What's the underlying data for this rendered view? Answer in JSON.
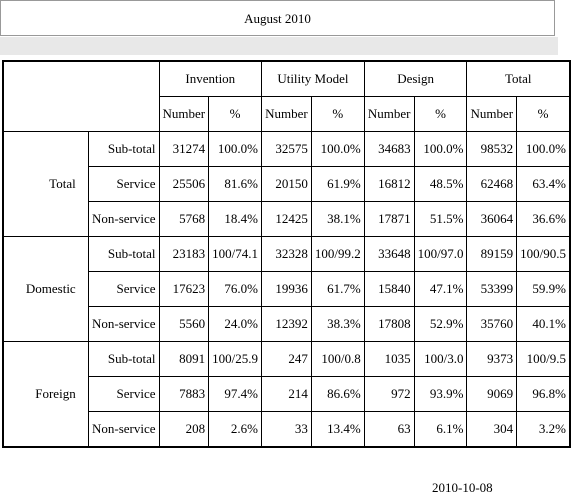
{
  "title": "August 2010",
  "table": {
    "corner": "",
    "columns": [
      "Invention",
      "Utility Model",
      "Design",
      "Total"
    ],
    "subcolumns": [
      "Number",
      "%"
    ],
    "groups": [
      {
        "label": "Total",
        "rows": [
          {
            "label": "Sub-total",
            "cells": [
              "31274",
              "100.0%",
              "32575",
              "100.0%",
              "34683",
              "100.0%",
              "98532",
              "100.0%"
            ]
          },
          {
            "label": "Service",
            "cells": [
              "25506",
              "81.6%",
              "20150",
              "61.9%",
              "16812",
              "48.5%",
              "62468",
              "63.4%"
            ]
          },
          {
            "label": "Non-service",
            "cells": [
              "5768",
              "18.4%",
              "12425",
              "38.1%",
              "17871",
              "51.5%",
              "36064",
              "36.6%"
            ]
          }
        ]
      },
      {
        "label": "Domestic",
        "rows": [
          {
            "label": "Sub-total",
            "cells": [
              "23183",
              "100/74.1",
              "32328",
              "100/99.2",
              "33648",
              "100/97.0",
              "89159",
              "100/90.5"
            ]
          },
          {
            "label": "Service",
            "cells": [
              "17623",
              "76.0%",
              "19936",
              "61.7%",
              "15840",
              "47.1%",
              "53399",
              "59.9%"
            ]
          },
          {
            "label": "Non-service",
            "cells": [
              "5560",
              "24.0%",
              "12392",
              "38.3%",
              "17808",
              "52.9%",
              "35760",
              "40.1%"
            ]
          }
        ]
      },
      {
        "label": "Foreign",
        "rows": [
          {
            "label": "Sub-total",
            "cells": [
              "8091",
              "100/25.9",
              "247",
              "100/0.8",
              "1035",
              "100/3.0",
              "9373",
              "100/9.5"
            ]
          },
          {
            "label": "Service",
            "cells": [
              "7883",
              "97.4%",
              "214",
              "86.6%",
              "972",
              "93.9%",
              "9069",
              "96.8%"
            ]
          },
          {
            "label": "Non-service",
            "cells": [
              "208",
              "2.6%",
              "33",
              "13.4%",
              "63",
              "6.1%",
              "304",
              "3.2%"
            ]
          }
        ]
      }
    ]
  },
  "date": "2010-10-08"
}
